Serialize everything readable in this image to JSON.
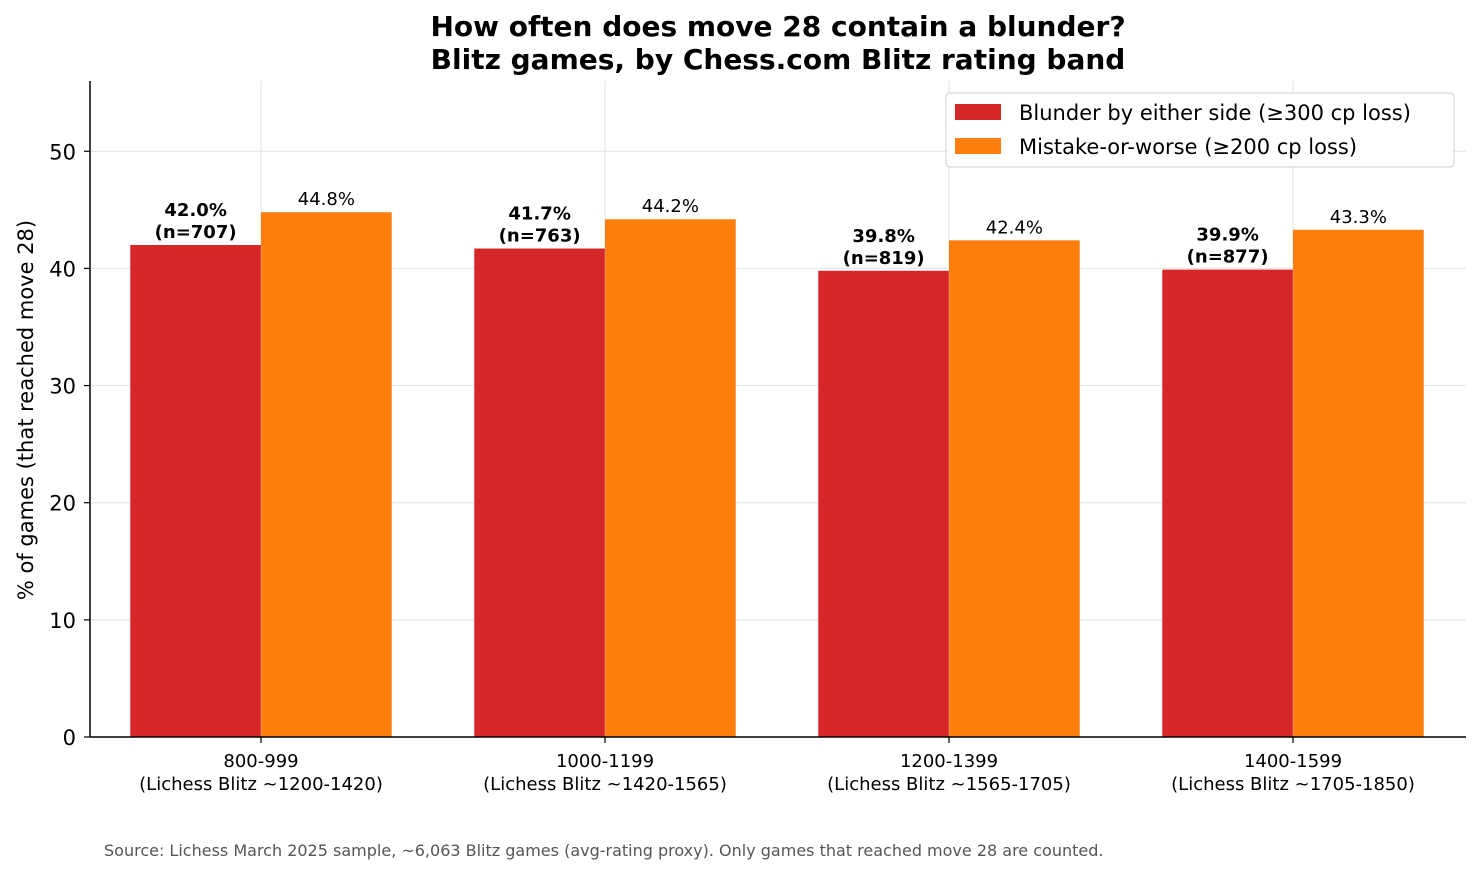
{
  "chart_data": {
    "type": "bar",
    "title": "How often does move 28 contain a blunder?",
    "subtitle": "Blitz games, by Chess.com Blitz rating band",
    "ylabel": "% of games (that reached move 28)",
    "xlabel": "",
    "ylim": [
      0,
      56
    ],
    "yticks": [
      0,
      10,
      20,
      30,
      40,
      50
    ],
    "grid": true,
    "legend_position": "top-right",
    "categories": [
      {
        "line1": "800-999",
        "line2": "(Lichess Blitz ~1200-1420)"
      },
      {
        "line1": "1000-1199",
        "line2": "(Lichess Blitz ~1420-1565)"
      },
      {
        "line1": "1200-1399",
        "line2": "(Lichess Blitz ~1565-1705)"
      },
      {
        "line1": "1400-1599",
        "line2": "(Lichess Blitz ~1705-1850)"
      }
    ],
    "series": [
      {
        "name": "Blunder by either side (≥300 cp loss)",
        "color": "#d62728",
        "values": [
          42.0,
          41.7,
          39.8,
          39.9
        ],
        "labels": [
          "42.0%",
          "41.7%",
          "39.8%",
          "39.9%"
        ],
        "sublabels": [
          "(n=707)",
          "(n=763)",
          "(n=819)",
          "(n=877)"
        ]
      },
      {
        "name": "Mistake-or-worse (≥200 cp loss)",
        "color": "#ff7f0e",
        "values": [
          44.8,
          44.2,
          42.4,
          43.3
        ],
        "labels": [
          "44.8%",
          "44.2%",
          "42.4%",
          "43.3%"
        ]
      }
    ]
  },
  "source_note": "Source: Lichess March 2025 sample, ~6,063 Blitz games (avg-rating proxy). Only games that reached move 28 are counted."
}
